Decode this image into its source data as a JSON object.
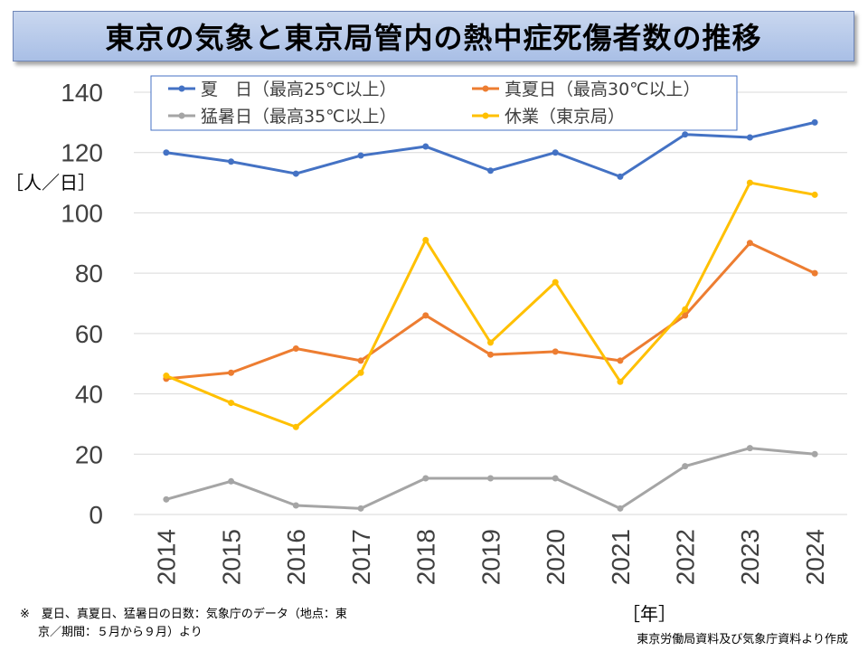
{
  "title": "東京の気象と東京局管内の熱中症死傷者数の推移",
  "ylabel": "［人／日］",
  "xlabel": "［年］",
  "note_line1": "※　夏日、真夏日、猛暑日の日数：気象庁のデータ（地点：東",
  "note_line2": "京／期間：５月から９月）より",
  "source": "東京労働局資料及び気象庁資料より作成",
  "chart_data": {
    "type": "line",
    "title": "東京の気象と東京局管内の熱中症死傷者数の推移",
    "xlabel": "［年］",
    "ylabel": "［人／日］",
    "ylim": [
      0,
      140
    ],
    "yticks": [
      0,
      20,
      40,
      60,
      80,
      100,
      120,
      140
    ],
    "grid": true,
    "legend_position": "top",
    "categories": [
      "2014",
      "2015",
      "2016",
      "2017",
      "2018",
      "2019",
      "2020",
      "2021",
      "2022",
      "2023",
      "2024"
    ],
    "series": [
      {
        "name": "夏　日（最高25℃以上）",
        "color": "#4472c4",
        "values": [
          120,
          117,
          113,
          119,
          122,
          114,
          120,
          112,
          126,
          125,
          130
        ]
      },
      {
        "name": "真夏日（最高30℃以上）",
        "color": "#ed7d31",
        "values": [
          45,
          47,
          55,
          51,
          66,
          53,
          54,
          51,
          66,
          90,
          80
        ]
      },
      {
        "name": "猛暑日（最高35℃以上）",
        "color": "#a5a5a5",
        "values": [
          5,
          11,
          3,
          2,
          12,
          12,
          12,
          2,
          16,
          22,
          20
        ]
      },
      {
        "name": "休業（東京局）",
        "color": "#ffc000",
        "values": [
          46,
          37,
          29,
          47,
          91,
          57,
          77,
          44,
          68,
          110,
          106
        ]
      }
    ]
  }
}
